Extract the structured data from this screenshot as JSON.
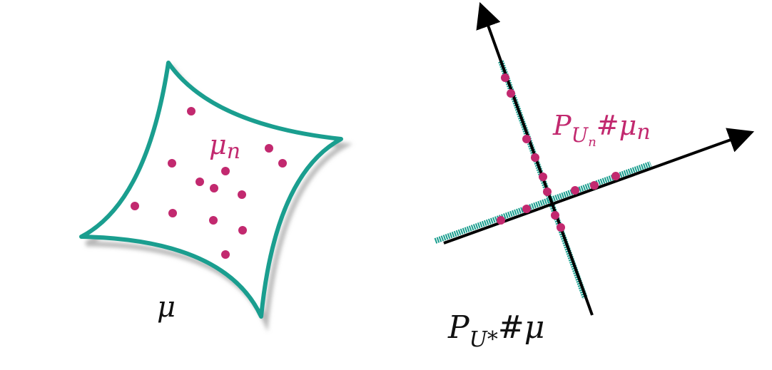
{
  "colors": {
    "teal": "#1a9e8f",
    "magenta": "#c2296f",
    "axis": "#000000",
    "shadow": "#b8b8b8"
  },
  "labels": {
    "mu": "μ",
    "mu_n_base": "μ",
    "mu_n_sub": "n",
    "proj_n_P": "P",
    "proj_n_U": "U",
    "proj_n_n": "n",
    "proj_n_hash": "#",
    "proj_n_mu": "μ",
    "proj_n_musub": "n",
    "proj_star_P": "P",
    "proj_star_U": "U*",
    "proj_star_hash": "#",
    "proj_star_mu": "μ"
  },
  "scatter_point_count": 14,
  "projected_point_count": 14
}
